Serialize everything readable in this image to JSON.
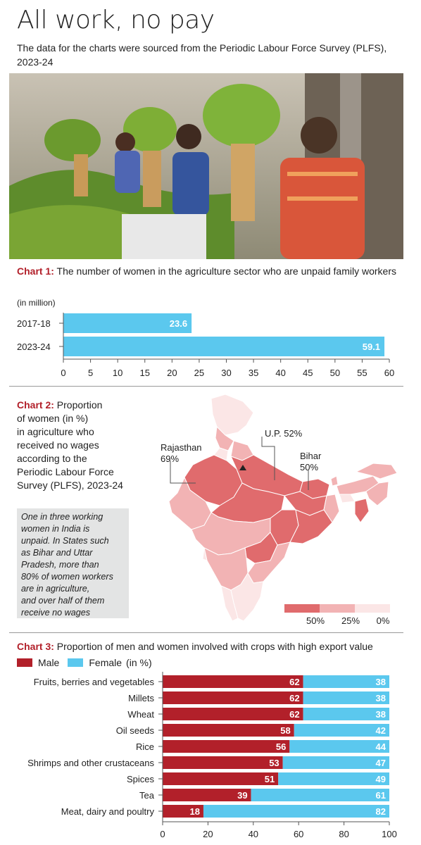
{
  "title": "All work, no pay",
  "subtitle": "The data for the charts were sourced from the Periodic Labour Force Survey (PLFS), 2023-24",
  "colors": {
    "accent": "#b2202a",
    "cyan": "#5bc8ee",
    "map_high": "#e06b6d",
    "map_mid": "#f2b3b4",
    "map_low": "#fbe6e6"
  },
  "chart1": {
    "label": "Chart 1:",
    "title": "The number of women in the agriculture sector who are unpaid family workers",
    "unit": "(in million)"
  },
  "chart2": {
    "label": "Chart 2:",
    "title_lines": [
      "Proportion",
      "of women (in %)",
      "in agriculture who",
      "received no wages",
      "according to the",
      "Periodic Labour Force",
      "Survey (PLFS), 2023-24"
    ],
    "note_lines": [
      "One in three working",
      "women in India is",
      "unpaid. In States such",
      "as Bihar and Uttar",
      "Pradesh, more than",
      "80% of women workers",
      "are in agriculture,",
      "and over half of them",
      "receive no wages"
    ],
    "callouts": [
      {
        "lines": [
          "Rajasthan",
          "69%"
        ]
      },
      {
        "lines": [
          "U.P. 52%"
        ]
      },
      {
        "lines": [
          "Bihar",
          "50%"
        ]
      }
    ],
    "scale_labels": [
      "50%",
      "25%",
      "0%"
    ]
  },
  "chart3": {
    "label": "Chart 3:",
    "title": "Proportion of men and women involved with crops with high export value",
    "legend_male": "Male",
    "legend_female": "Female",
    "legend_unit": "(in %)"
  },
  "chart_data": [
    {
      "type": "bar",
      "orientation": "horizontal",
      "categories": [
        "2017-18",
        "2023-24"
      ],
      "values": [
        23.6,
        59.1
      ],
      "xlim": [
        0,
        60
      ],
      "xticks": [
        0,
        5,
        10,
        15,
        20,
        25,
        30,
        35,
        40,
        45,
        50,
        55,
        60
      ],
      "color": "#5bc8ee"
    },
    {
      "type": "bar",
      "orientation": "horizontal",
      "stacked": true,
      "categories": [
        "Fruits, berries and vegetables",
        "Millets",
        "Wheat",
        "Oil seeds",
        "Rice",
        "Shrimps and other crustaceans",
        "Spices",
        "Tea",
        "Meat, dairy and poultry"
      ],
      "series": [
        {
          "name": "Male",
          "color": "#b2202a",
          "values": [
            62,
            62,
            62,
            58,
            56,
            53,
            51,
            39,
            18
          ]
        },
        {
          "name": "Female",
          "color": "#5bc8ee",
          "values": [
            38,
            38,
            38,
            42,
            44,
            47,
            49,
            61,
            82
          ]
        }
      ],
      "xlim": [
        0,
        100
      ],
      "xticks": [
        0,
        20,
        40,
        60,
        80,
        100
      ]
    }
  ]
}
